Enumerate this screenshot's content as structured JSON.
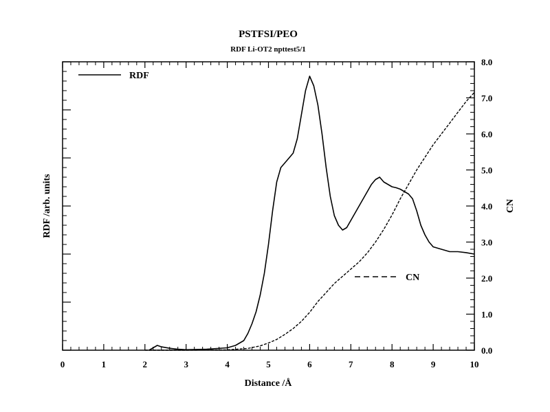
{
  "chart_data": {
    "type": "line",
    "title": "PSTFSI/PEO",
    "subtitle": "RDF Li-OT2 npttest5/1",
    "xlabel": "Distance /Å",
    "ylabel_left": "RDF /arb. units",
    "ylabel_right": "CN",
    "xlim": [
      0,
      10
    ],
    "ylim_left": [
      0,
      6
    ],
    "ylim_right": [
      0,
      8
    ],
    "x_ticks": [
      "0",
      "1",
      "2",
      "3",
      "4",
      "5",
      "6",
      "7",
      "8",
      "9",
      "10"
    ],
    "y_right_ticks": [
      "0.0",
      "1.0",
      "2.0",
      "3.0",
      "4.0",
      "5.0",
      "6.0",
      "7.0",
      "8.0"
    ],
    "legend": {
      "placement": "top-left / right-middle"
    },
    "series": [
      {
        "name": "RDF",
        "axis": "left",
        "style": "solid",
        "x": [
          2.1,
          2.2,
          2.3,
          2.4,
          2.6,
          2.8,
          3.0,
          3.5,
          4.0,
          4.2,
          4.4,
          4.5,
          4.6,
          4.7,
          4.8,
          4.9,
          5.0,
          5.1,
          5.2,
          5.3,
          5.4,
          5.5,
          5.6,
          5.7,
          5.8,
          5.9,
          6.0,
          6.05,
          6.1,
          6.2,
          6.3,
          6.4,
          6.5,
          6.6,
          6.7,
          6.8,
          6.9,
          7.0,
          7.1,
          7.2,
          7.3,
          7.4,
          7.5,
          7.6,
          7.7,
          7.8,
          7.9,
          8.0,
          8.1,
          8.2,
          8.3,
          8.4,
          8.5,
          8.6,
          8.7,
          8.8,
          8.9,
          9.0,
          9.2,
          9.4,
          9.6,
          9.8,
          10.0
        ],
        "y": [
          0.0,
          0.05,
          0.1,
          0.07,
          0.04,
          0.02,
          0.01,
          0.02,
          0.05,
          0.1,
          0.2,
          0.35,
          0.55,
          0.8,
          1.15,
          1.6,
          2.2,
          2.9,
          3.5,
          3.8,
          3.9,
          4.0,
          4.1,
          4.4,
          4.9,
          5.4,
          5.7,
          5.6,
          5.5,
          5.1,
          4.5,
          3.8,
          3.2,
          2.8,
          2.6,
          2.5,
          2.55,
          2.7,
          2.85,
          3.0,
          3.15,
          3.3,
          3.45,
          3.55,
          3.6,
          3.5,
          3.45,
          3.4,
          3.38,
          3.35,
          3.3,
          3.25,
          3.15,
          2.9,
          2.6,
          2.4,
          2.25,
          2.15,
          2.1,
          2.05,
          2.05,
          2.03,
          2.0
        ]
      },
      {
        "name": "CN",
        "axis": "right",
        "style": "dashed",
        "x": [
          2.0,
          3.0,
          4.0,
          4.5,
          4.8,
          5.0,
          5.2,
          5.4,
          5.6,
          5.8,
          6.0,
          6.2,
          6.4,
          6.6,
          6.8,
          7.0,
          7.2,
          7.4,
          7.6,
          7.8,
          8.0,
          8.2,
          8.4,
          8.6,
          8.8,
          9.0,
          9.2,
          9.4,
          9.6,
          9.8,
          10.0
        ],
        "y": [
          0.0,
          0.0,
          0.01,
          0.05,
          0.12,
          0.2,
          0.3,
          0.44,
          0.6,
          0.8,
          1.05,
          1.35,
          1.6,
          1.85,
          2.05,
          2.25,
          2.45,
          2.7,
          3.0,
          3.35,
          3.75,
          4.2,
          4.6,
          5.0,
          5.35,
          5.7,
          6.0,
          6.3,
          6.6,
          6.9,
          7.15
        ]
      }
    ]
  }
}
